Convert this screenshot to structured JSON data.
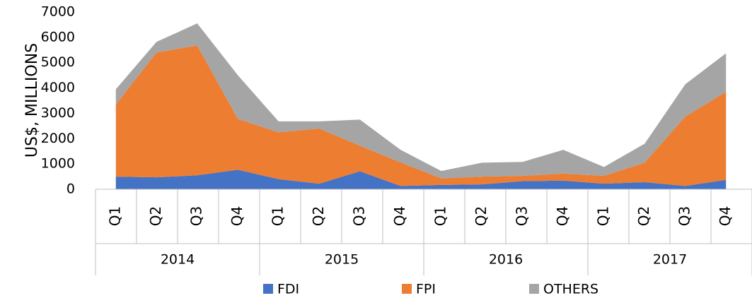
{
  "chart_data": {
    "type": "stacked-area",
    "y_label": "US$, MILLIONS",
    "categories": [
      "Q1",
      "Q2",
      "Q3",
      "Q4",
      "Q1",
      "Q2",
      "Q3",
      "Q4",
      "Q1",
      "Q2",
      "Q3",
      "Q4",
      "Q1",
      "Q2",
      "Q3",
      "Q4"
    ],
    "groups": [
      "2014",
      "2015",
      "2016",
      "2017"
    ],
    "series": [
      {
        "name": "FDI",
        "color": "#4472c4",
        "values": [
          500,
          470,
          550,
          770,
          400,
          220,
          710,
          130,
          170,
          190,
          320,
          340,
          220,
          280,
          130,
          370
        ]
      },
      {
        "name": "FPI",
        "color": "#ed7d31",
        "values": [
          2850,
          4930,
          5130,
          2010,
          1850,
          2180,
          1010,
          930,
          260,
          310,
          210,
          280,
          310,
          770,
          2740,
          3480
        ]
      },
      {
        "name": "OTHERS",
        "color": "#a5a5a5",
        "values": [
          600,
          420,
          870,
          1720,
          430,
          280,
          1030,
          500,
          290,
          550,
          550,
          940,
          350,
          750,
          1280,
          1520
        ]
      }
    ],
    "ylim": [
      0,
      7000
    ],
    "yticks": [
      0,
      1000,
      2000,
      3000,
      4000,
      5000,
      6000,
      7000
    ],
    "legend": "bottom"
  }
}
